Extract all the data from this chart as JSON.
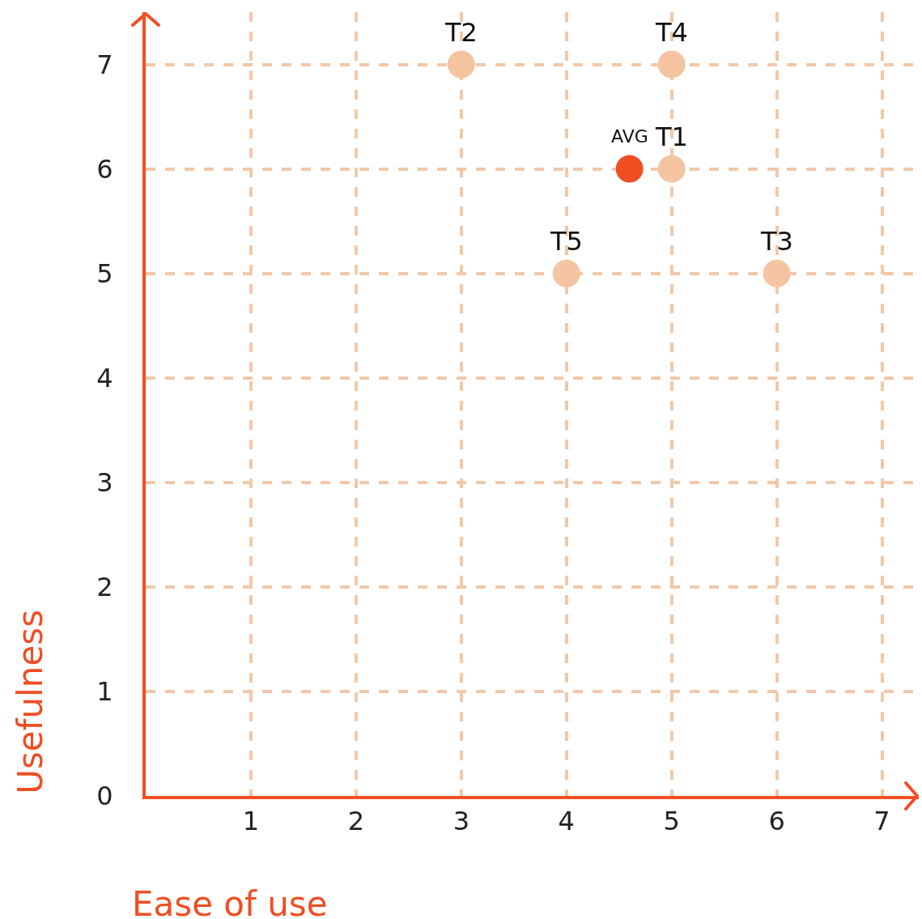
{
  "chart_data": {
    "type": "scatter",
    "xlabel": "Ease of use",
    "ylabel": "Usefulness",
    "x": [
      5,
      3,
      6,
      5,
      4,
      4.6
    ],
    "values": [
      6,
      7,
      5,
      7,
      5,
      6
    ],
    "colors": [
      "#f5c4a0",
      "#f5c4a0",
      "#f5c4a0",
      "#f5c4a0",
      "#f5c4a0",
      "#f04e23"
    ],
    "annotations": [
      {
        "text": "T1",
        "x": 5,
        "y": 6
      },
      {
        "text": "T2",
        "x": 3,
        "y": 7
      },
      {
        "text": "T3",
        "x": 6,
        "y": 5
      },
      {
        "text": "T4",
        "x": 5,
        "y": 7
      },
      {
        "text": "T5",
        "x": 4,
        "y": 5
      },
      {
        "text": "AVG",
        "x": 4.6,
        "y": 6
      }
    ],
    "xlim": [
      0,
      7.35
    ],
    "ylim": [
      0,
      7.5
    ],
    "xticks": [
      1,
      2,
      3,
      4,
      5,
      6,
      7
    ],
    "yticks": [
      0,
      1,
      2,
      3,
      4,
      5,
      6,
      7
    ],
    "grid": true,
    "marker": "circle",
    "legend": false
  }
}
